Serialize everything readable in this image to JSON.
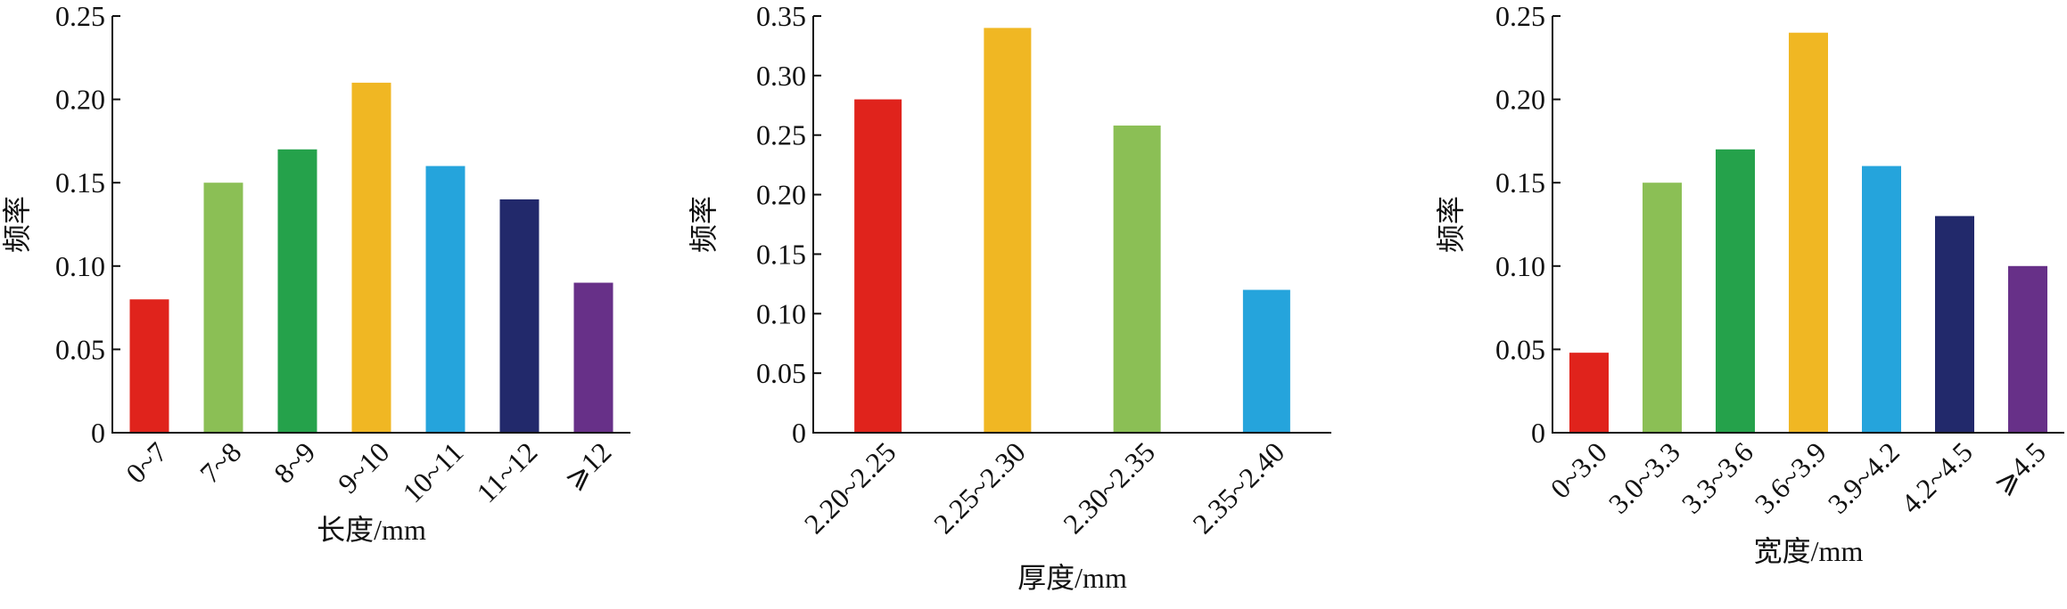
{
  "chart_data": [
    {
      "type": "bar",
      "y_label": "频率",
      "x_label": "长度/mm",
      "categories": [
        "0~7",
        "7~8",
        "8~9",
        "9~10",
        "10~11",
        "11~12",
        "⩾12"
      ],
      "values": [
        0.08,
        0.15,
        0.17,
        0.21,
        0.16,
        0.14,
        0.09
      ],
      "colors": [
        "#e0231c",
        "#8bbf55",
        "#25a24b",
        "#f0b723",
        "#25a4dc",
        "#22296b",
        "#673088"
      ],
      "ylim": [
        0,
        0.25
      ],
      "yticks": [
        0,
        0.05,
        {
          "value": 0.1,
          "label": "0.10"
        },
        0.15,
        {
          "value": 0.2,
          "label": "0.20"
        },
        0.25
      ]
    },
    {
      "type": "bar",
      "y_label": "频率",
      "x_label": "厚度/mm",
      "categories": [
        "2.20~2.25",
        "2.25~2.30",
        "2.30~2.35",
        "2.35~2.40"
      ],
      "values": [
        0.28,
        0.34,
        0.258,
        0.12
      ],
      "colors": [
        "#e0231c",
        "#f0b723",
        "#8bbf55",
        "#25a4dc"
      ],
      "ylim": [
        0,
        0.35
      ],
      "yticks": [
        0,
        0.05,
        {
          "value": 0.1,
          "label": "0.10"
        },
        0.15,
        {
          "value": 0.2,
          "label": "0.20"
        },
        0.25,
        {
          "value": 0.3,
          "label": "0.30"
        },
        0.35
      ]
    },
    {
      "type": "bar",
      "y_label": "频率",
      "x_label": "宽度/mm",
      "categories": [
        "0~3.0",
        "3.0~3.3",
        "3.3~3.6",
        "3.6~3.9",
        "3.9~4.2",
        "4.2~4.5",
        "⩾4.5"
      ],
      "values": [
        0.048,
        0.15,
        0.17,
        0.24,
        0.16,
        0.13,
        0.1
      ],
      "colors": [
        "#e0231c",
        "#8bbf55",
        "#25a24b",
        "#f0b723",
        "#25a4dc",
        "#22296b",
        "#673088"
      ],
      "ylim": [
        0,
        0.25
      ],
      "yticks": [
        0,
        0.05,
        {
          "value": 0.1,
          "label": "0.10"
        },
        0.15,
        {
          "value": 0.2,
          "label": "0.20"
        },
        0.25
      ]
    }
  ]
}
